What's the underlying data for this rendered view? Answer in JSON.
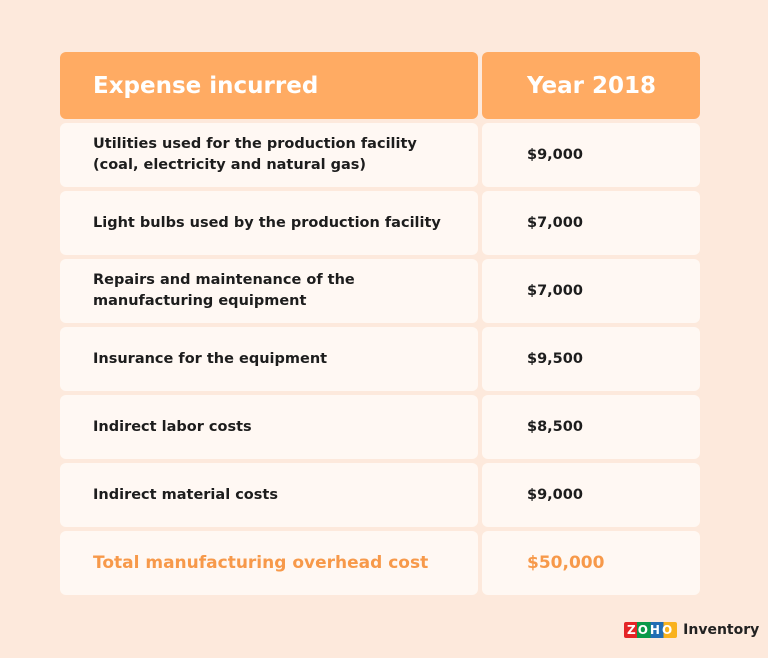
{
  "table": {
    "header": [
      "Expense incurred",
      "Year 2018"
    ],
    "rows": [
      [
        "Utilities used for the production facility\n(coal, electricity and natural gas)",
        "$9,000"
      ],
      [
        "Light bulbs used by the production facility",
        "$7,000"
      ],
      [
        "Repairs and maintenance of the\nmanufacturing equipment",
        "$7,000"
      ],
      [
        "Insurance for the equipment",
        "$9,500"
      ],
      [
        "Indirect labor costs",
        "$8,500"
      ],
      [
        "Indirect material costs",
        "$9,000"
      ]
    ],
    "total": [
      "Total manufacturing overhead cost",
      "$50,000"
    ]
  },
  "logo": {
    "brand": "ZOHO",
    "product": "Inventory"
  }
}
